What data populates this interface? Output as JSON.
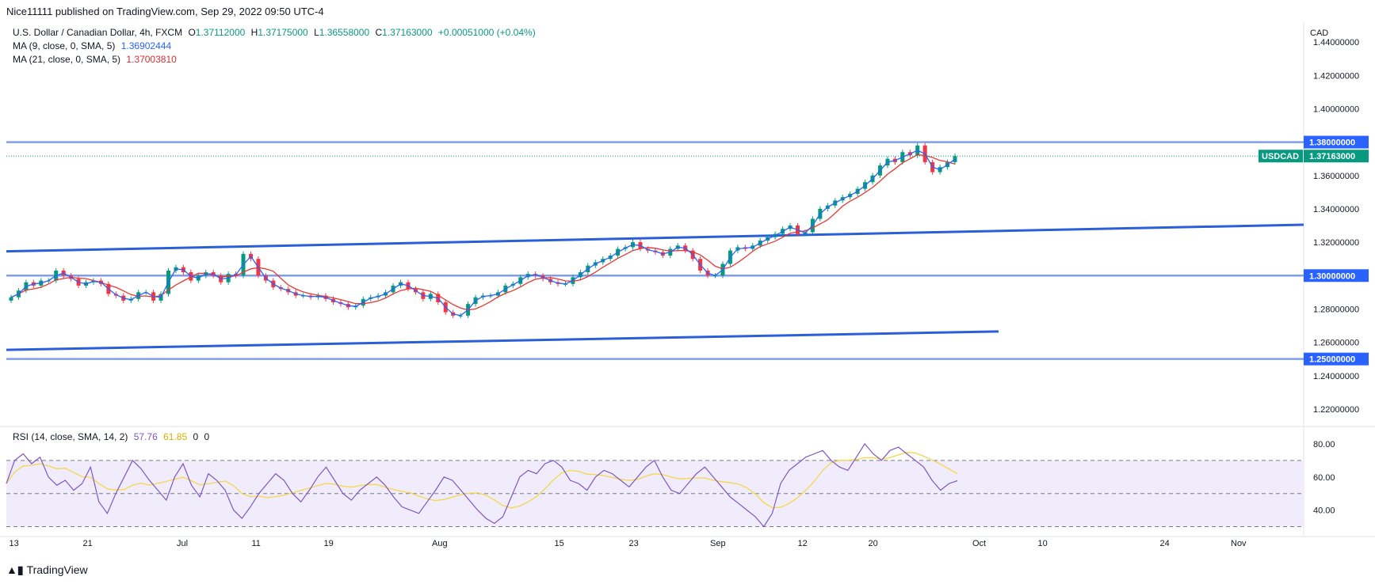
{
  "header": {
    "published": "Nice11111 published on TradingView.com, Sep 29, 2022 09:50 UTC-4"
  },
  "legend": {
    "symbol_line": "U.S. Dollar / Canadian Dollar, 4h, FXCM",
    "open_label": "O",
    "open": "1.37112000",
    "high_label": "H",
    "high": "1.37175000",
    "low_label": "L",
    "low": "1.36558000",
    "close_label": "C",
    "close": "1.37163000",
    "change": "+0.00051000 (+0.04%)",
    "ma9_label": "MA (9, close, 0, SMA, 5)",
    "ma9_value": "1.36902444",
    "ma21_label": "MA (21, close, 0, SMA, 5)",
    "ma21_value": "1.37003810"
  },
  "rsi_legend": {
    "label": "RSI (14, close, SMA, 14, 2)",
    "rsi": "57.76",
    "rsi_ma": "61.85",
    "z1": "0",
    "z2": "0"
  },
  "brand": "TradingView",
  "colors": {
    "up": "#089981",
    "down": "#f23645",
    "ma9": "#2962ff",
    "ma21": "#e53935",
    "level": "#7f9ef0",
    "trend": "#2b5fd9",
    "rsi": "#7e57c2",
    "rsi_ma": "#f5d64c",
    "rsi_band": "#f1ecfb"
  },
  "chart_data": [
    {
      "type": "candlestick",
      "title": "U.S. Dollar / Canadian Dollar, 4h, FXCM",
      "currency": "CAD",
      "x_ticks": [
        "13",
        "21",
        "Jul",
        "11",
        "19",
        "Aug",
        "15",
        "23",
        "Sep",
        "12",
        "20",
        "Oct",
        "10",
        "24",
        "Nov"
      ],
      "y_ticks": [
        "1.22000000",
        "1.24000000",
        "1.26000000",
        "1.28000000",
        "1.30000000",
        "1.32000000",
        "1.34000000",
        "1.36000000",
        "1.38000000",
        "1.40000000",
        "1.42000000",
        "1.44000000"
      ],
      "ylim": [
        1.21,
        1.45
      ],
      "horizontal_levels": [
        {
          "label": "1.38000000",
          "value": 1.38
        },
        {
          "label": "1.30000000",
          "value": 1.3
        },
        {
          "label": "1.25000000",
          "value": 1.25
        }
      ],
      "last_price": {
        "label": "USDCAD",
        "value": "1.37163000",
        "y": 1.37163
      },
      "trendlines": [
        {
          "name": "upper channel",
          "from": [
            "13",
            1.3145
          ],
          "to": [
            "right edge",
            1.3305
          ]
        },
        {
          "name": "lower channel",
          "from": [
            "13",
            1.2555
          ],
          "to": [
            "Oct",
            1.2665
          ]
        }
      ],
      "closes": [
        1.287,
        1.291,
        1.296,
        1.294,
        1.297,
        1.297,
        1.303,
        1.3,
        1.298,
        1.294,
        1.296,
        1.297,
        1.295,
        1.289,
        1.288,
        1.285,
        1.286,
        1.29,
        1.29,
        1.285,
        1.289,
        1.303,
        1.305,
        1.302,
        1.297,
        1.3,
        1.302,
        1.3,
        1.296,
        1.301,
        1.3,
        1.313,
        1.31,
        1.3,
        1.297,
        1.293,
        1.292,
        1.29,
        1.288,
        1.288,
        1.287,
        1.288,
        1.286,
        1.284,
        1.283,
        1.281,
        1.282,
        1.286,
        1.287,
        1.288,
        1.29,
        1.294,
        1.296,
        1.292,
        1.29,
        1.286,
        1.289,
        1.284,
        1.278,
        1.276,
        1.276,
        1.283,
        1.287,
        1.288,
        1.288,
        1.29,
        1.294,
        1.295,
        1.299,
        1.301,
        1.3,
        1.298,
        1.296,
        1.295,
        1.295,
        1.299,
        1.302,
        1.306,
        1.308,
        1.31,
        1.312,
        1.316,
        1.317,
        1.32,
        1.316,
        1.315,
        1.314,
        1.312,
        1.316,
        1.318,
        1.315,
        1.31,
        1.303,
        1.3,
        1.3,
        1.307,
        1.315,
        1.317,
        1.316,
        1.318,
        1.321,
        1.323,
        1.325,
        1.328,
        1.33,
        1.325,
        1.326,
        1.334,
        1.34,
        1.342,
        1.345,
        1.347,
        1.349,
        1.352,
        1.356,
        1.36,
        1.366,
        1.37,
        1.368,
        1.374,
        1.372,
        1.378,
        1.368,
        1.362,
        1.365,
        1.368,
        1.3716
      ],
      "ma9_last": 1.36902444,
      "ma21_last": 1.3700381
    },
    {
      "type": "line",
      "title": "RSI (14, close, SMA, 14, 2)",
      "y_ticks": [
        "40.00",
        "60.00",
        "80.00"
      ],
      "bands": [
        30,
        50,
        70
      ],
      "ylim": [
        25,
        90
      ],
      "series": [
        {
          "name": "RSI",
          "last": 57.76,
          "values": [
            56,
            70,
            74,
            68,
            72,
            60,
            55,
            58,
            52,
            56,
            66,
            45,
            38,
            50,
            60,
            70,
            65,
            58,
            52,
            46,
            60,
            68,
            55,
            48,
            62,
            58,
            52,
            40,
            35,
            42,
            50,
            56,
            62,
            58,
            50,
            45,
            52,
            60,
            66,
            58,
            50,
            46,
            52,
            56,
            60,
            55,
            48,
            42,
            40,
            38,
            45,
            52,
            60,
            58,
            52,
            46,
            40,
            35,
            32,
            36,
            48,
            60,
            64,
            62,
            68,
            70,
            66,
            58,
            56,
            52,
            60,
            64,
            62,
            58,
            54,
            60,
            66,
            70,
            60,
            52,
            50,
            56,
            62,
            66,
            60,
            54,
            48,
            44,
            40,
            36,
            30,
            38,
            56,
            64,
            68,
            72,
            74,
            76,
            70,
            66,
            64,
            72,
            80,
            74,
            70,
            76,
            78,
            74,
            70,
            66,
            58,
            52,
            56,
            57.76
          ]
        },
        {
          "name": "RSI-based MA",
          "last": 61.85
        }
      ]
    }
  ]
}
